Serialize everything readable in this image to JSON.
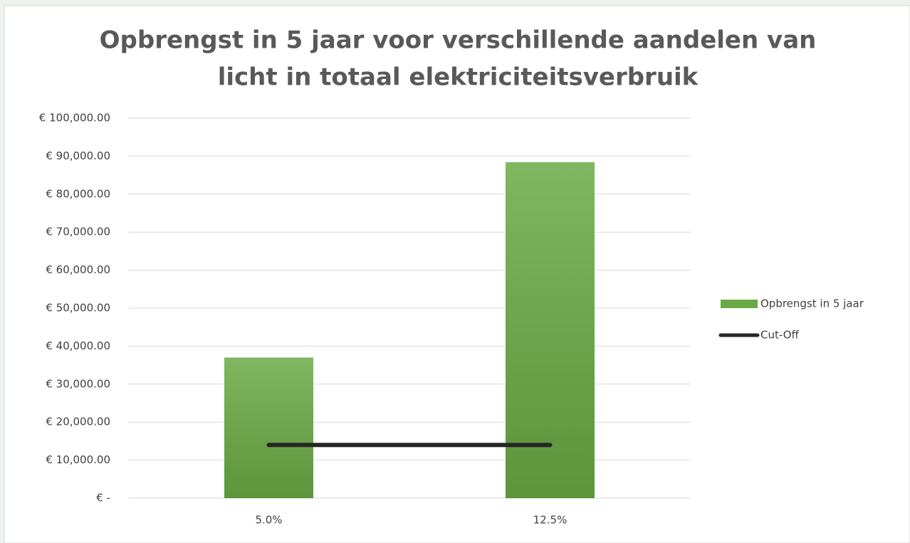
{
  "chart_data": {
    "type": "bar",
    "title": [
      "Opbrengst in 5 jaar voor verschillende aandelen van",
      "licht in totaal elektriciteitsverbruik"
    ],
    "categories": [
      "5.0%",
      "12.5%"
    ],
    "series": [
      {
        "name": "Opbrengst in 5 jaar",
        "color": "#6aaa45",
        "values": [
          37000,
          88400
        ]
      },
      {
        "name": "Cut-Off",
        "color": "#262626",
        "type": "line",
        "values": [
          14000,
          14000
        ]
      }
    ],
    "ylim": [
      0,
      100000
    ],
    "yticks": [
      {
        "value": 0,
        "label": "€ -"
      },
      {
        "value": 10000,
        "label": "€ 10,000.00"
      },
      {
        "value": 20000,
        "label": "€ 20,000.00"
      },
      {
        "value": 30000,
        "label": "€ 30,000.00"
      },
      {
        "value": 40000,
        "label": "€ 40,000.00"
      },
      {
        "value": 50000,
        "label": "€ 50,000.00"
      },
      {
        "value": 60000,
        "label": "€ 60,000.00"
      },
      {
        "value": 70000,
        "label": "€ 70,000.00"
      },
      {
        "value": 80000,
        "label": "€ 80,000.00"
      },
      {
        "value": 90000,
        "label": "€ 90,000.00"
      },
      {
        "value": 100000,
        "label": "€ 100,000.00"
      }
    ],
    "grid": true,
    "legend": "right"
  }
}
